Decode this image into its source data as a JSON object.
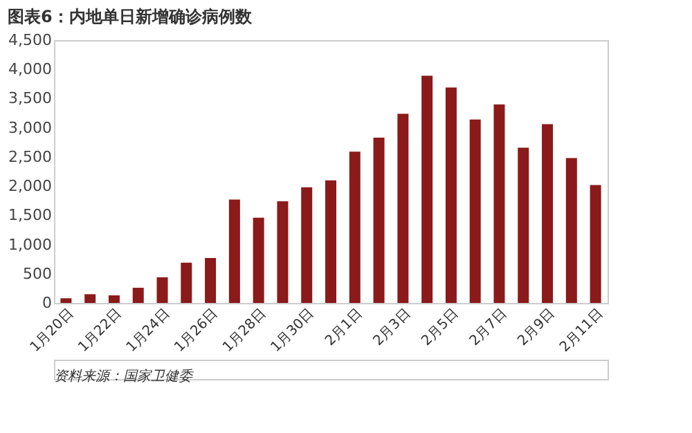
{
  "chart_data": {
    "type": "bar",
    "title": "图表6：内地单日新增确诊病例数",
    "categories": [
      "1月20日",
      null,
      "1月22日",
      null,
      "1月24日",
      null,
      "1月26日",
      null,
      "1月28日",
      null,
      "1月30日",
      null,
      "2月1日",
      null,
      "2月3日",
      null,
      "2月5日",
      null,
      "2月7日",
      null,
      "2月9日",
      null,
      "2月11日"
    ],
    "series": [
      {
        "color": "#8b1a1a",
        "values": [
          80,
          150,
          130,
          260,
          440,
          690,
          770,
          1770,
          1460,
          1740,
          1980,
          2100,
          2590,
          2830,
          3240,
          3890,
          3690,
          3140,
          3400,
          2660,
          3060,
          2480,
          2020
        ]
      }
    ],
    "ylim": [
      0,
      4500
    ],
    "yticks": [
      {
        "value": 0,
        "label": "0"
      },
      {
        "value": 500,
        "label": "500"
      },
      {
        "value": 1000,
        "label": "1,000"
      },
      {
        "value": 1500,
        "label": "1,500"
      },
      {
        "value": 2000,
        "label": "2,000"
      },
      {
        "value": 2500,
        "label": "2,500"
      },
      {
        "value": 3000,
        "label": "3,000"
      },
      {
        "value": 3500,
        "label": "3,500"
      },
      {
        "value": 4000,
        "label": "4,000"
      },
      {
        "value": 4500,
        "label": "4,500"
      }
    ],
    "grid": false,
    "legend": false,
    "annotations": [
      "资料来源：国家卫健委"
    ]
  }
}
